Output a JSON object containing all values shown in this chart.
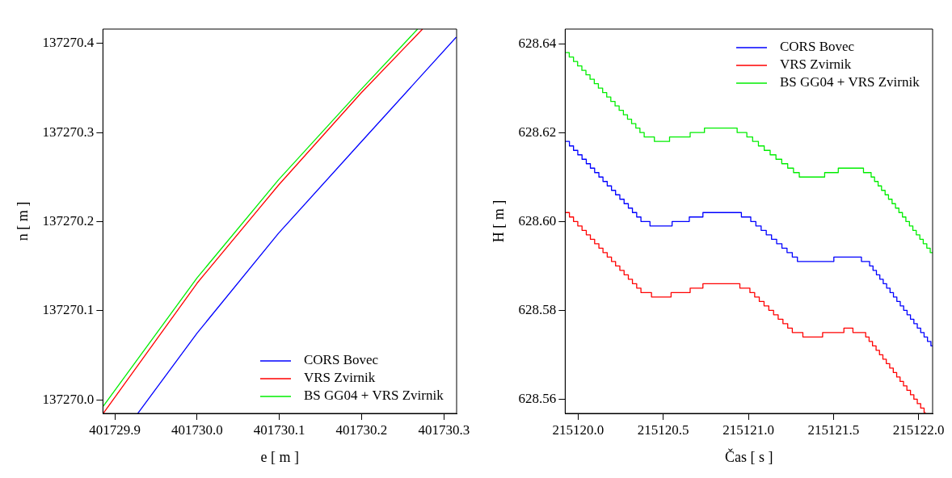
{
  "chart_data": [
    {
      "type": "line",
      "xlabel": "e [ m ]",
      "ylabel": "n [ m ]",
      "xlim": [
        401729.8856,
        401730.3154
      ],
      "ylim": [
        137269.985,
        137270.416
      ],
      "xticks": [
        401729.9,
        {
          "value": 401730,
          "label": "401730.0"
        },
        401730.1,
        401730.2,
        401730.3
      ],
      "yticks": [
        {
          "value": 137270,
          "label": "137270.0"
        },
        137270.1,
        137270.2,
        137270.3,
        137270.4
      ],
      "grid": false,
      "legend": "bottom right",
      "marker": "none",
      "line_style": "solid",
      "series": [
        {
          "name": "CORS Bovec",
          "color": "#0000ff",
          "x": [
            401729.928,
            401730.0,
            401730.099,
            401730.199,
            401730.315
          ],
          "values": [
            137269.985,
            137270.075,
            137270.187,
            137270.289,
            137270.407
          ]
        },
        {
          "name": "VRS Zvirnik",
          "color": "#ff0000",
          "x": [
            401729.886,
            401730.0,
            401730.099,
            401730.199,
            401730.274
          ],
          "values": [
            137269.985,
            137270.131,
            137270.241,
            137270.344,
            137270.416
          ]
        },
        {
          "name": "BS GG04 + VRS Zvirnik",
          "color": "#00ee00",
          "x": [
            401729.886,
            401730.0,
            401730.099,
            401730.199,
            401730.268
          ],
          "values": [
            137269.993,
            137270.137,
            137270.247,
            137270.348,
            137270.416
          ]
        }
      ]
    },
    {
      "type": "step",
      "xlabel": "Čas [ s ]",
      "ylabel": "H [ m ]",
      "xlim": [
        215119.924,
        215122.082
      ],
      "ylim": [
        628.5568,
        628.6433
      ],
      "xticks": [
        {
          "value": 215120,
          "label": "215120.0"
        },
        215120.5,
        {
          "value": 215121,
          "label": "215121.0"
        },
        215121.5,
        {
          "value": 215122,
          "label": "215122.0"
        }
      ],
      "yticks": [
        628.56,
        628.58,
        {
          "value": 628.6,
          "label": "628.60"
        },
        628.62,
        628.64
      ],
      "grid": false,
      "legend": "top right",
      "marker": "none",
      "line_style": "solid",
      "series": [
        {
          "name": "CORS Bovec",
          "color": "#0000ff",
          "x": [
            215119.924,
            215119.949,
            215119.973,
            215119.998,
            215120.023,
            215120.048,
            215120.072,
            215120.097,
            215120.122,
            215120.146,
            215120.171,
            215120.196,
            215120.22,
            215120.245,
            215120.27,
            215120.295,
            215120.319,
            215120.344,
            215120.369,
            215120.422,
            215120.552,
            215120.653,
            215120.733,
            215120.959,
            215121.014,
            215121.044,
            215121.075,
            215121.105,
            215121.136,
            215121.166,
            215121.197,
            215121.227,
            215121.258,
            215121.288,
            215121.502,
            215121.664,
            215121.712,
            215121.732,
            215121.752,
            215121.772,
            215121.792,
            215121.812,
            215121.832,
            215121.852,
            215121.872,
            215121.892,
            215121.912,
            215121.932,
            215121.952,
            215121.972,
            215121.992,
            215122.012,
            215122.032,
            215122.052,
            215122.072,
            215122.082
          ],
          "values": [
            628.618,
            628.617,
            628.616,
            628.615,
            628.614,
            628.613,
            628.612,
            628.611,
            628.61,
            628.609,
            628.608,
            628.607,
            628.606,
            628.605,
            628.604,
            628.603,
            628.602,
            628.601,
            628.6,
            628.599,
            628.6,
            628.601,
            628.602,
            628.601,
            628.6,
            628.599,
            628.598,
            628.597,
            628.596,
            628.595,
            628.594,
            628.593,
            628.592,
            628.591,
            628.592,
            628.591,
            628.59,
            628.589,
            628.588,
            628.587,
            628.586,
            628.585,
            628.584,
            628.583,
            628.582,
            628.581,
            628.58,
            628.579,
            628.578,
            628.577,
            628.576,
            628.575,
            628.574,
            628.573,
            628.572,
            628.572
          ]
        },
        {
          "name": "VRS Zvirnik",
          "color": "#ff0000",
          "x": [
            215119.924,
            215119.949,
            215119.973,
            215119.998,
            215120.023,
            215120.048,
            215120.072,
            215120.097,
            215120.122,
            215120.146,
            215120.171,
            215120.196,
            215120.22,
            215120.245,
            215120.27,
            215120.295,
            215120.319,
            215120.344,
            215120.369,
            215120.431,
            215120.546,
            215120.658,
            215120.733,
            215120.95,
            215121.009,
            215121.037,
            215121.064,
            215121.092,
            215121.12,
            215121.148,
            215121.175,
            215121.203,
            215121.231,
            215121.258,
            215121.32,
            215121.436,
            215121.561,
            215121.614,
            215121.689,
            215121.709,
            215121.729,
            215121.75,
            215121.77,
            215121.79,
            215121.81,
            215121.83,
            215121.851,
            215121.871,
            215121.891,
            215121.911,
            215121.931,
            215121.952,
            215121.972,
            215121.992,
            215122.012,
            215122.032,
            215122.041
          ],
          "values": [
            628.602,
            628.601,
            628.6,
            628.599,
            628.598,
            628.597,
            628.596,
            628.595,
            628.594,
            628.593,
            628.592,
            628.591,
            628.59,
            628.589,
            628.588,
            628.587,
            628.586,
            628.585,
            628.584,
            628.583,
            628.584,
            628.585,
            628.586,
            628.585,
            628.584,
            628.583,
            628.582,
            628.581,
            628.58,
            628.579,
            628.578,
            628.577,
            628.576,
            628.575,
            628.574,
            628.575,
            628.576,
            628.575,
            628.574,
            628.573,
            628.572,
            628.571,
            628.57,
            628.569,
            628.568,
            628.567,
            628.566,
            628.565,
            628.564,
            628.563,
            628.562,
            628.561,
            628.56,
            628.559,
            628.558,
            628.557,
            628.557
          ]
        },
        {
          "name": "BS GG04 + VRS Zvirnik",
          "color": "#00ee00",
          "x": [
            215119.924,
            215119.948,
            215119.973,
            215119.997,
            215120.022,
            215120.046,
            215120.07,
            215120.095,
            215120.119,
            215120.144,
            215120.168,
            215120.192,
            215120.217,
            215120.241,
            215120.266,
            215120.29,
            215120.314,
            215120.339,
            215120.363,
            215120.388,
            215120.448,
            215120.537,
            215120.658,
            215120.742,
            215120.934,
            215120.991,
            215121.025,
            215121.059,
            215121.093,
            215121.128,
            215121.162,
            215121.196,
            215121.231,
            215121.265,
            215121.299,
            215121.448,
            215121.528,
            215121.676,
            215121.721,
            215121.741,
            215121.762,
            215121.782,
            215121.803,
            215121.823,
            215121.844,
            215121.864,
            215121.884,
            215121.905,
            215121.925,
            215121.946,
            215121.966,
            215121.986,
            215122.007,
            215122.027,
            215122.048,
            215122.068,
            215122.082
          ],
          "values": [
            628.638,
            628.637,
            628.636,
            628.635,
            628.634,
            628.633,
            628.632,
            628.631,
            628.63,
            628.629,
            628.628,
            628.627,
            628.626,
            628.625,
            628.624,
            628.623,
            628.622,
            628.621,
            628.62,
            628.619,
            628.618,
            628.619,
            628.62,
            628.621,
            628.62,
            628.619,
            628.618,
            628.617,
            628.616,
            628.615,
            628.614,
            628.613,
            628.612,
            628.611,
            628.61,
            628.611,
            628.612,
            628.611,
            628.61,
            628.609,
            628.608,
            628.607,
            628.606,
            628.605,
            628.604,
            628.603,
            628.602,
            628.601,
            628.6,
            628.599,
            628.598,
            628.597,
            628.596,
            628.595,
            628.594,
            628.593,
            628.593
          ]
        }
      ]
    }
  ]
}
